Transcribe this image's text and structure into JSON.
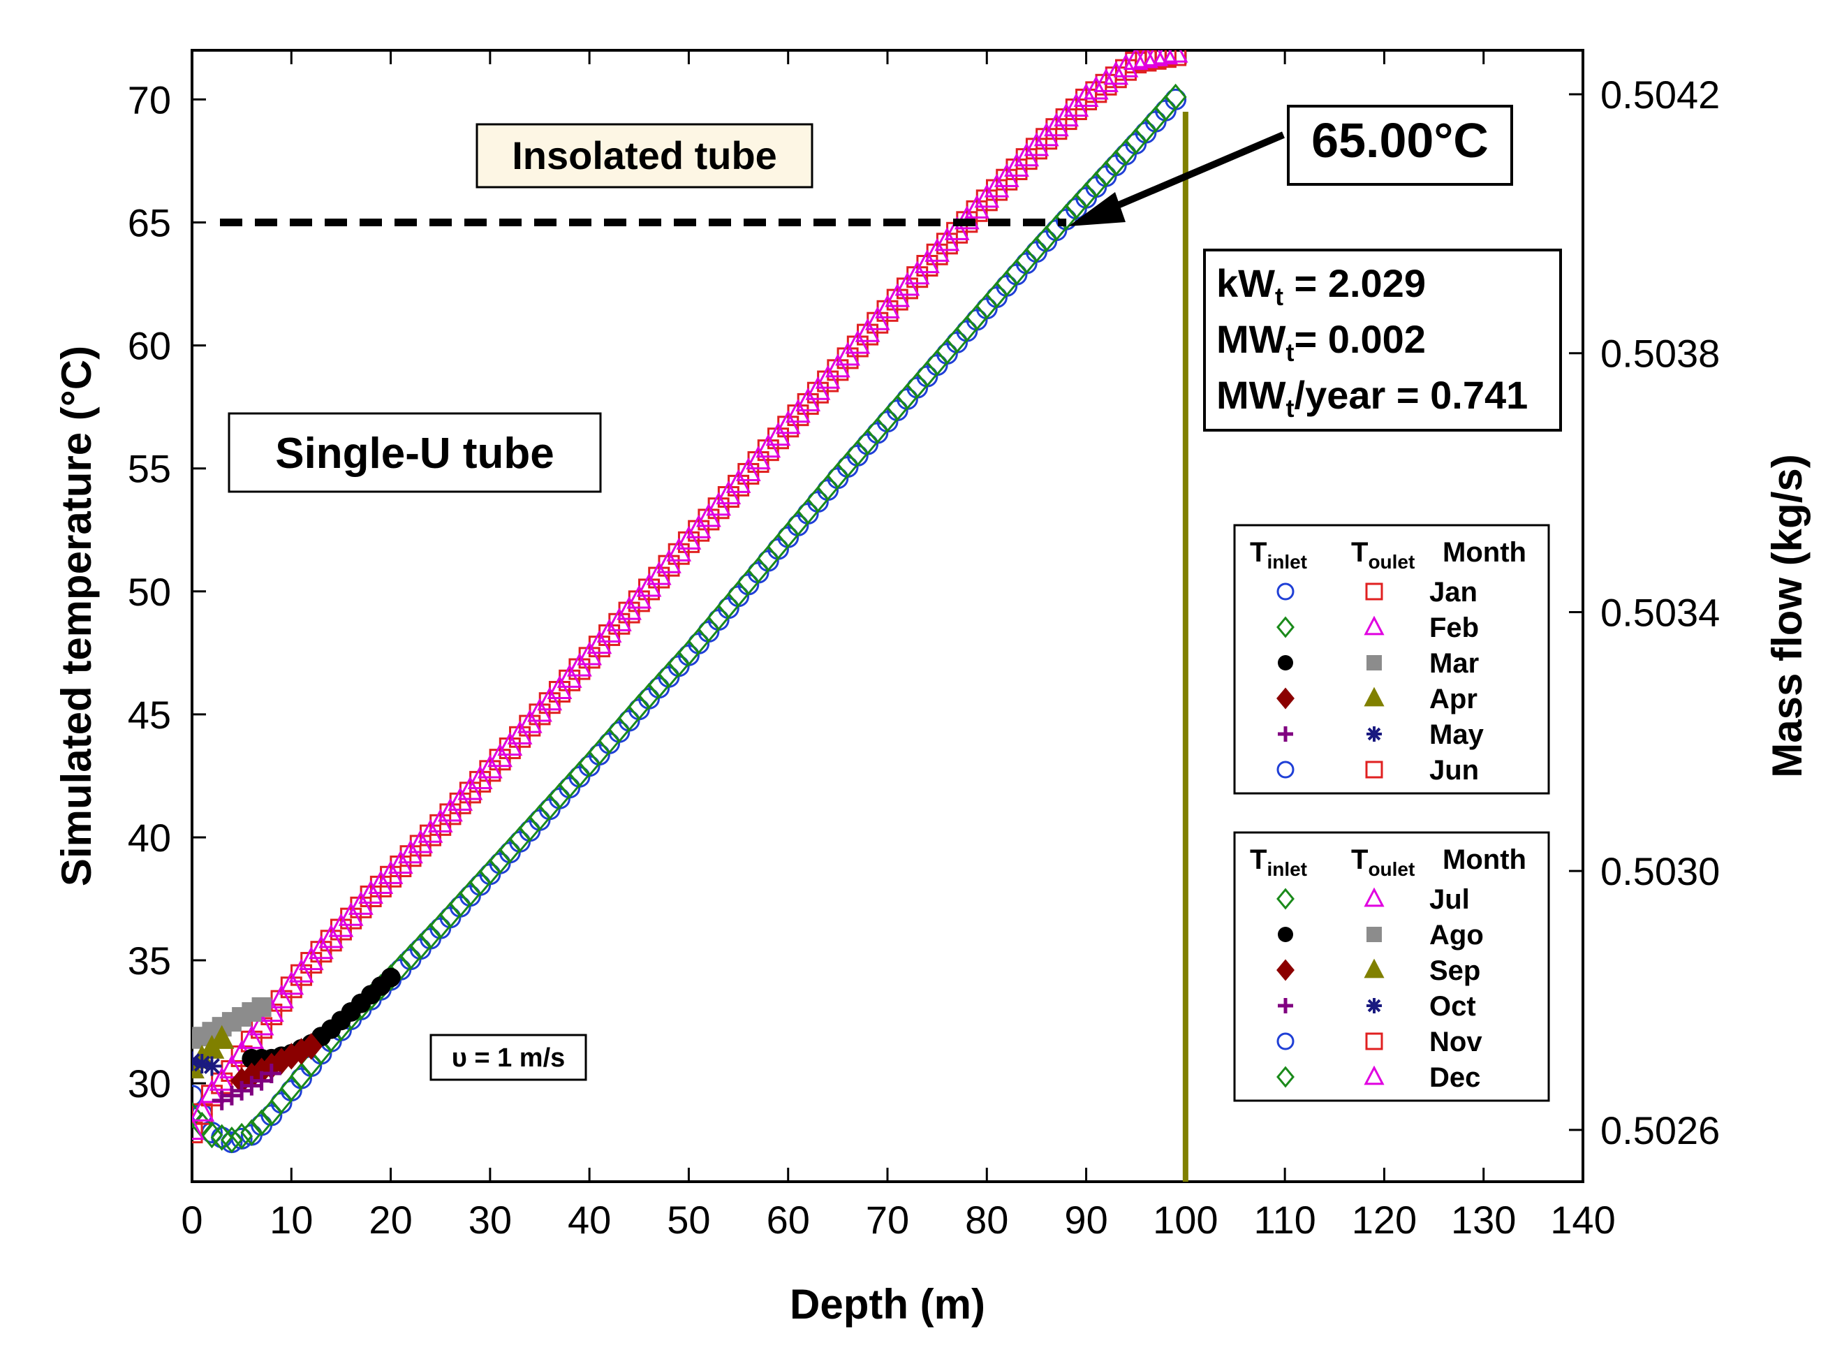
{
  "chart_data": {
    "type": "scatter",
    "xlabel": "Depth (m)",
    "ylabel": "Simulated temperature (°C)",
    "y2label": "Mass flow (kg/s)",
    "xlim": [
      0,
      140
    ],
    "ylim": [
      26,
      72
    ],
    "y2lim": [
      0.50252,
      0.504268
    ],
    "xticks": [
      "0",
      "10",
      "20",
      "30",
      "40",
      "50",
      "60",
      "70",
      "80",
      "90",
      "100",
      "110",
      "120",
      "130",
      "140"
    ],
    "yticks": [
      "30",
      "35",
      "40",
      "45",
      "50",
      "55",
      "60",
      "65",
      "70"
    ],
    "y2ticks": [
      "0.5026",
      "0.5030",
      "0.5034",
      "0.5038",
      "0.5042"
    ],
    "grid": false,
    "annotations": {
      "insolated": "Insolated tube",
      "single_u": "Single-U tube",
      "velocity": "υ = 1 m/s",
      "target_value": "65.00",
      "target_unit": "°C",
      "power_1": "kW",
      "power_1_value": " = 2.029",
      "power_2": "MW",
      "power_2_value": "= 0.002",
      "power_3": "MW",
      "power_3_value": "/year = 0.741",
      "power_subscript": "t"
    },
    "reference_lines": {
      "target_temperature": 65,
      "tube_depth": 100
    },
    "legend_headers": {
      "inlet": "T",
      "inlet_sub": "inlet",
      "outlet": "T",
      "outlet_sub": "oulet",
      "month": "Month"
    },
    "legend_months_1": [
      "Jan",
      "Feb",
      "Mar",
      "Apr",
      "May",
      "Jun"
    ],
    "legend_months_2": [
      "Jul",
      "Ago",
      "Sep",
      "Oct",
      "Nov",
      "Dec"
    ],
    "series": [
      {
        "month": "Jan",
        "role": "inlet",
        "marker": "circle-open",
        "color": "#1f3fd6",
        "x": [
          0,
          2,
          4,
          6,
          8,
          10,
          12,
          14,
          16,
          18,
          20,
          25,
          30,
          35,
          40,
          45,
          50,
          55,
          60,
          65,
          70,
          75,
          80,
          85,
          90,
          95,
          99
        ],
        "y": [
          29.5,
          28.0,
          27.6,
          27.9,
          28.7,
          29.7,
          30.7,
          31.7,
          32.6,
          33.4,
          34.2,
          36.3,
          38.5,
          40.7,
          42.9,
          45.2,
          47.4,
          49.8,
          52.2,
          54.6,
          56.9,
          59.2,
          61.5,
          63.8,
          66.0,
          68.2,
          70.0
        ]
      },
      {
        "month": "Jan",
        "role": "outlet",
        "marker": "square-open",
        "color": "#e02020",
        "x": [
          0,
          2,
          4,
          6,
          8,
          10,
          12,
          14,
          16,
          18,
          20,
          25,
          30,
          35,
          40,
          45,
          50,
          55,
          60,
          65,
          70,
          75,
          80,
          85,
          90,
          95,
          99
        ],
        "y": [
          28.0,
          29.5,
          30.5,
          31.7,
          32.8,
          33.9,
          34.9,
          35.8,
          36.7,
          37.6,
          38.4,
          40.5,
          42.7,
          45.0,
          47.3,
          49.6,
          52.0,
          54.3,
          56.7,
          59.0,
          61.4,
          63.7,
          65.9,
          68.0,
          70.0,
          71.5,
          71.8
        ]
      },
      {
        "month": "Feb",
        "role": "inlet",
        "marker": "diamond-open",
        "color": "#1a8a1a",
        "x": [
          0,
          2,
          4,
          6,
          8,
          10,
          12,
          14,
          16,
          18,
          20,
          25,
          30,
          35,
          40,
          45,
          50,
          55,
          60,
          65,
          70,
          75,
          80,
          85,
          90,
          95,
          99
        ],
        "y": [
          28.7,
          27.9,
          27.7,
          28.0,
          28.8,
          29.8,
          30.8,
          31.8,
          32.7,
          33.5,
          34.3,
          36.4,
          38.6,
          40.8,
          43.0,
          45.3,
          47.5,
          49.9,
          52.3,
          54.7,
          57.0,
          59.3,
          61.6,
          63.9,
          66.1,
          68.3,
          70.1
        ]
      },
      {
        "month": "Feb",
        "role": "outlet",
        "marker": "triangle-open",
        "color": "#e000e0",
        "x": [
          0,
          2,
          4,
          6,
          8,
          10,
          12,
          14,
          16,
          18,
          20,
          25,
          30,
          35,
          40,
          45,
          50,
          55,
          60,
          65,
          70,
          75,
          80,
          85,
          90,
          95,
          99
        ],
        "y": [
          28.1,
          29.6,
          30.6,
          31.8,
          32.9,
          34.0,
          35.0,
          35.9,
          36.8,
          37.7,
          38.5,
          40.6,
          42.8,
          45.1,
          47.4,
          49.7,
          52.1,
          54.4,
          56.8,
          59.1,
          61.5,
          63.8,
          66.0,
          68.1,
          70.1,
          71.6,
          71.9
        ]
      },
      {
        "month": "Mar",
        "role": "inlet",
        "marker": "circle-filled",
        "color": "#000000",
        "x": [
          6,
          8,
          10,
          12,
          14,
          16,
          18,
          20
        ],
        "y": [
          31.0,
          31.0,
          31.2,
          31.6,
          32.2,
          32.9,
          33.6,
          34.3
        ]
      },
      {
        "month": "Mar",
        "role": "outlet",
        "marker": "square-filled",
        "color": "#8c8c8c",
        "x": [
          0,
          1,
          2,
          3,
          4,
          5,
          6,
          7
        ],
        "y": [
          31.8,
          31.9,
          32.1,
          32.3,
          32.5,
          32.7,
          32.9,
          33.1
        ]
      },
      {
        "month": "Apr",
        "role": "inlet",
        "marker": "diamond-filled",
        "color": "#8b0000",
        "x": [
          5,
          6,
          7,
          8,
          9,
          10,
          11,
          12
        ],
        "y": [
          30.1,
          30.3,
          30.5,
          30.7,
          30.9,
          31.1,
          31.3,
          31.5
        ]
      },
      {
        "month": "Apr",
        "role": "outlet",
        "marker": "triangle-filled",
        "color": "#808000",
        "x": [
          0,
          1,
          2,
          3
        ],
        "y": [
          30.6,
          31.0,
          31.4,
          31.8
        ]
      },
      {
        "month": "May",
        "role": "inlet",
        "marker": "plus",
        "color": "#800080",
        "x": [
          3,
          4,
          5,
          6,
          7,
          8
        ],
        "y": [
          29.3,
          29.5,
          29.7,
          29.9,
          30.1,
          30.4
        ]
      },
      {
        "month": "May",
        "role": "outlet",
        "marker": "asterisk",
        "color": "#1a1a80",
        "x": [
          0,
          1,
          2
        ],
        "y": [
          30.9,
          30.8,
          30.7
        ]
      }
    ]
  }
}
